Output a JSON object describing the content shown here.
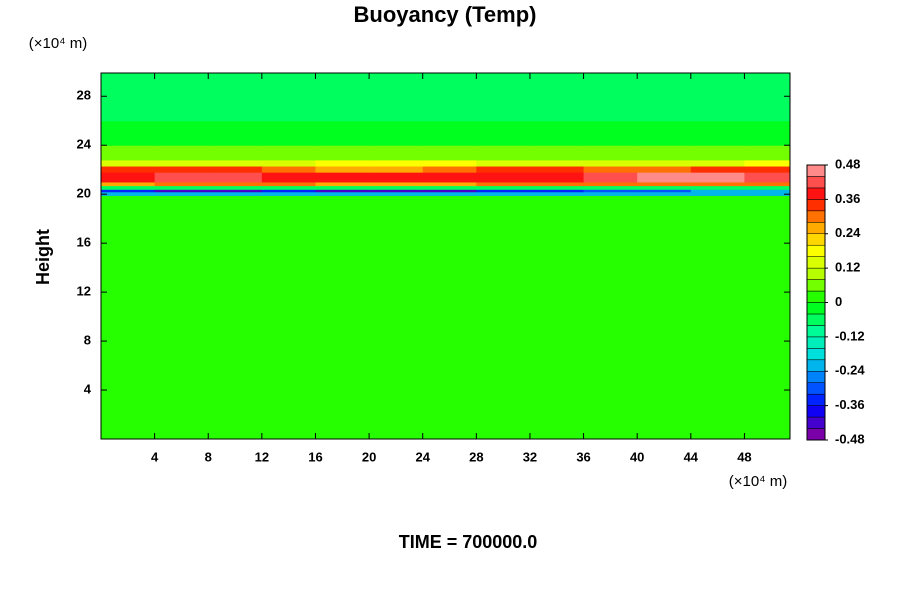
{
  "chart_data": {
    "type": "heatmap",
    "title": "Buoyancy (Temp)",
    "y_label": "Height",
    "y_unit": "(×10⁴ m)",
    "x_unit": "(×10⁴ m)",
    "footer": "TIME = 700000.0",
    "xlim": [
      0,
      51.4
    ],
    "xticks": [
      4,
      8,
      12,
      16,
      20,
      24,
      28,
      32,
      36,
      40,
      44,
      48
    ],
    "ylim": [
      0,
      29.9
    ],
    "yticks": [
      4,
      8,
      12,
      16,
      20,
      24,
      28
    ],
    "x_edges": [
      0,
      4,
      8,
      12,
      16,
      20,
      24,
      28,
      32,
      36,
      40,
      44,
      48,
      51.4
    ],
    "y_edges": [
      0,
      19.9,
      20.2,
      20.4,
      20.7,
      21.0,
      21.8,
      22.3,
      22.8,
      24,
      26,
      29.9
    ],
    "z": [
      [
        0.02,
        0.02,
        0.02,
        0.02,
        0.02,
        0.02,
        0.02,
        0.02,
        0.02,
        0.02,
        0.02,
        0.02,
        0.02
      ],
      [
        -0.2,
        -0.2,
        -0.2,
        -0.2,
        -0.2,
        -0.2,
        -0.2,
        -0.2,
        -0.2,
        -0.2,
        -0.2,
        -0.2,
        -0.2
      ],
      [
        -0.36,
        -0.4,
        -0.4,
        -0.36,
        -0.4,
        -0.4,
        -0.4,
        -0.36,
        -0.36,
        -0.32,
        -0.28,
        -0.24,
        -0.24
      ],
      [
        -0.08,
        -0.08,
        -0.08,
        -0.08,
        -0.08,
        -0.08,
        -0.08,
        -0.08,
        -0.08,
        -0.08,
        -0.08,
        -0.08,
        -0.08
      ],
      [
        0.24,
        0.28,
        0.28,
        0.28,
        0.24,
        0.24,
        0.24,
        0.28,
        0.28,
        0.28,
        0.28,
        0.28,
        0.28
      ],
      [
        0.36,
        0.4,
        0.4,
        0.36,
        0.36,
        0.36,
        0.36,
        0.36,
        0.36,
        0.4,
        0.44,
        0.44,
        0.4
      ],
      [
        0.32,
        0.32,
        0.32,
        0.28,
        0.24,
        0.24,
        0.28,
        0.32,
        0.32,
        0.28,
        0.28,
        0.32,
        0.32
      ],
      [
        0.12,
        0.12,
        0.12,
        0.12,
        0.16,
        0.16,
        0.16,
        0.12,
        0.12,
        0.12,
        0.12,
        0.12,
        0.16
      ],
      [
        0.04,
        0.04,
        0.04,
        0.06,
        0.06,
        0.08,
        0.06,
        0.04,
        0.04,
        0.04,
        0.04,
        0.04,
        0.04
      ],
      [
        -0.04,
        -0.04,
        -0.04,
        -0.04,
        -0.04,
        -0.04,
        -0.04,
        -0.04,
        -0.04,
        -0.04,
        -0.04,
        -0.04,
        -0.04
      ],
      [
        -0.06,
        -0.06,
        -0.06,
        -0.06,
        -0.06,
        -0.06,
        -0.06,
        -0.06,
        -0.06,
        -0.06,
        -0.06,
        -0.06,
        -0.06
      ]
    ],
    "clim": [
      -0.48,
      0.48
    ],
    "colorbar_ticks": [
      0.48,
      0.36,
      0.24,
      0.12,
      0,
      -0.12,
      -0.24,
      -0.36,
      -0.48
    ],
    "colors": [
      "#7a00a8",
      "#0000ff",
      "#0070ff",
      "#00e0e0",
      "#00ff90",
      "#00ff00",
      "#b0ff00",
      "#ffff00",
      "#ff9900",
      "#ff0000",
      "#ff8a8a"
    ]
  }
}
